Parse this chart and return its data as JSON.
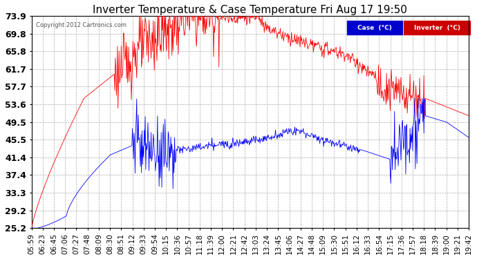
{
  "title": "Inverter Temperature & Case Temperature Fri Aug 17 19:50",
  "copyright": "Copyright 2012 Cartronics.com",
  "legend_case_label": "Case  (°C)",
  "legend_inv_label": "Inverter  (°C)",
  "ylim": [
    25.2,
    73.9
  ],
  "yticks": [
    25.2,
    29.2,
    33.3,
    37.4,
    41.4,
    45.5,
    49.5,
    53.6,
    57.7,
    61.7,
    65.8,
    69.8,
    73.9
  ],
  "bg_color": "#ffffff",
  "plot_bg_color": "#ffffff",
  "grid_color": "#aaaaaa",
  "line_color_inv": "#ff0000",
  "line_color_case": "#0000ff",
  "legend_case_bg": "#0000cc",
  "legend_inv_bg": "#cc0000",
  "tick_label_fontsize": 7.5,
  "ytick_fontsize": 9,
  "title_fontsize": 11,
  "x_tick_labels": [
    "05:59",
    "06:23",
    "06:45",
    "07:06",
    "07:27",
    "07:48",
    "08:09",
    "08:30",
    "08:51",
    "09:12",
    "09:33",
    "09:54",
    "10:15",
    "10:36",
    "10:57",
    "11:18",
    "11:39",
    "12:00",
    "12:21",
    "12:42",
    "13:03",
    "13:24",
    "13:45",
    "14:06",
    "14:27",
    "14:48",
    "15:09",
    "15:30",
    "15:51",
    "16:12",
    "16:33",
    "16:54",
    "17:15",
    "17:36",
    "17:57",
    "18:18",
    "18:39",
    "19:00",
    "19:21",
    "19:42"
  ]
}
